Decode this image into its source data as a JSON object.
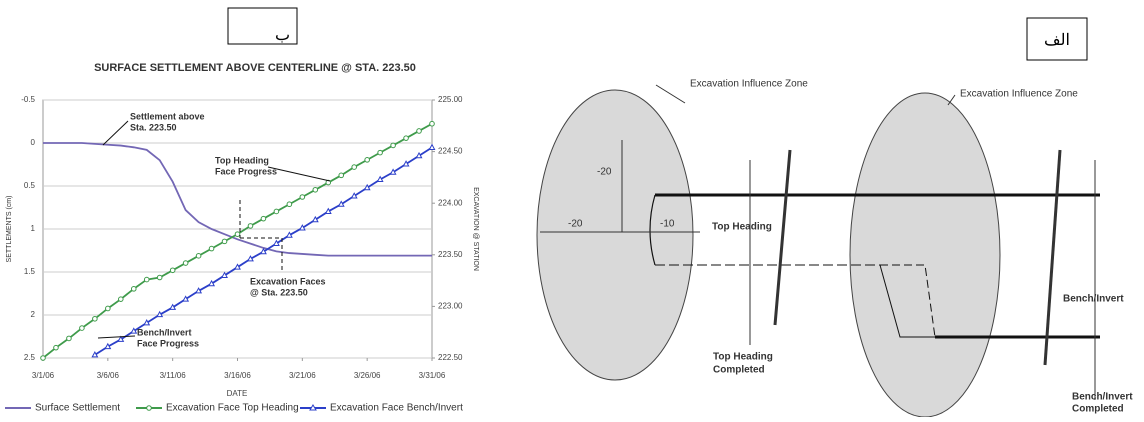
{
  "chart_data": {
    "type": "line",
    "title": "SURFACE SETTLEMENT ABOVE CENTERLINE @ STA. 223.50",
    "xlabel": "DATE",
    "ylabel": "SETTLEMENTS (cm)",
    "y2label": "EXCAVATION @ STATION",
    "x": [
      "2006-03-01",
      "2006-03-02",
      "2006-03-03",
      "2006-03-04",
      "2006-03-05",
      "2006-03-06",
      "2006-03-07",
      "2006-03-08",
      "2006-03-09",
      "2006-03-10",
      "2006-03-11",
      "2006-03-12",
      "2006-03-13",
      "2006-03-14",
      "2006-03-15",
      "2006-03-16",
      "2006-03-17",
      "2006-03-18",
      "2006-03-19",
      "2006-03-20",
      "2006-03-21",
      "2006-03-22",
      "2006-03-23",
      "2006-03-24",
      "2006-03-25",
      "2006-03-26",
      "2006-03-27",
      "2006-03-28",
      "2006-03-29",
      "2006-03-30",
      "2006-03-31"
    ],
    "xlim": [
      "2006-03-01",
      "2006-03-31"
    ],
    "xticks": [
      {
        "value": "2006-03-01",
        "label": "3/1/06"
      },
      {
        "value": "2006-03-06",
        "label": "3/6/06"
      },
      {
        "value": "2006-03-11",
        "label": "3/11/06"
      },
      {
        "value": "2006-03-16",
        "label": "3/16/06"
      },
      {
        "value": "2006-03-21",
        "label": "3/21/06"
      },
      {
        "value": "2006-03-26",
        "label": "3/26/06"
      },
      {
        "value": "2006-03-31",
        "label": "3/31/06"
      }
    ],
    "ylim": [
      2.5,
      -0.5
    ],
    "yticks": [
      -0.5,
      0,
      0.5,
      1,
      1.5,
      2,
      2.5
    ],
    "y2lim": [
      222.5,
      225
    ],
    "y2ticks": [
      {
        "value": 222.5,
        "label": "222.50"
      },
      {
        "value": 223,
        "label": "223.00"
      },
      {
        "value": 223.5,
        "label": "223.50"
      },
      {
        "value": 224,
        "label": "224.00"
      },
      {
        "value": 224.5,
        "label": "224.50"
      },
      {
        "value": 225,
        "label": "225.00"
      }
    ],
    "grid": true,
    "series": [
      {
        "name": "Surface Settlement",
        "color": "#7367b5",
        "marker": "none",
        "values": [
          0,
          0,
          0,
          0,
          0.01,
          0.02,
          0.03,
          0.05,
          0.08,
          0.2,
          0.45,
          0.78,
          0.92,
          1.0,
          1.06,
          1.12,
          1.17,
          1.22,
          1.26,
          1.28,
          1.29,
          1.3,
          1.31,
          1.31,
          1.31,
          1.31,
          1.31,
          1.31,
          1.31,
          1.31,
          1.31
        ]
      },
      {
        "name": "Excavation Face Top Heading",
        "color": "#3f9b4b",
        "marker": "circle",
        "axis": "y2",
        "values": [
          222.5,
          222.6,
          222.69,
          222.79,
          222.88,
          222.98,
          223.07,
          223.17,
          223.26,
          223.28,
          223.35,
          223.42,
          223.49,
          223.56,
          223.63,
          223.7,
          223.78,
          223.85,
          223.92,
          223.99,
          224.06,
          224.13,
          224.2,
          224.27,
          224.35,
          224.42,
          224.49,
          224.56,
          224.63,
          224.7,
          224.77
        ]
      },
      {
        "name": "Excavation Face Bench/Invert",
        "color": "#2b3fc9",
        "marker": "triangle",
        "axis": "y2",
        "values": [
          null,
          null,
          null,
          null,
          222.53,
          222.61,
          222.68,
          222.76,
          222.84,
          222.92,
          222.99,
          223.07,
          223.15,
          223.22,
          223.3,
          223.38,
          223.46,
          223.53,
          223.61,
          223.69,
          223.76,
          223.84,
          223.92,
          223.99,
          224.07,
          224.15,
          224.23,
          224.3,
          224.38,
          224.46,
          224.54
        ]
      }
    ],
    "annotations": [
      [
        "Settlement above",
        "Sta. 223.50"
      ],
      [
        "Top Heading",
        "Face Progress"
      ],
      [
        "Excavation Faces",
        "@ Sta. 223.50"
      ],
      [
        "Bench/Invert",
        "Face Progress"
      ]
    ]
  },
  "figure_labels": [
    "ب",
    "الف"
  ],
  "diagram": {
    "zone_label_left": "Excavation Influence Zone",
    "zone_label_right": "Excavation Influence Zone",
    "dim_vertical": "-20",
    "dim_horizontal": "-20",
    "dim_inner": "-10",
    "top_heading": "Top Heading",
    "top_heading_completed": [
      "Top Heading",
      "Completed"
    ],
    "bench_invert": "Bench/Invert",
    "bench_invert_completed": [
      "Bench/Invert",
      "Completed"
    ]
  }
}
